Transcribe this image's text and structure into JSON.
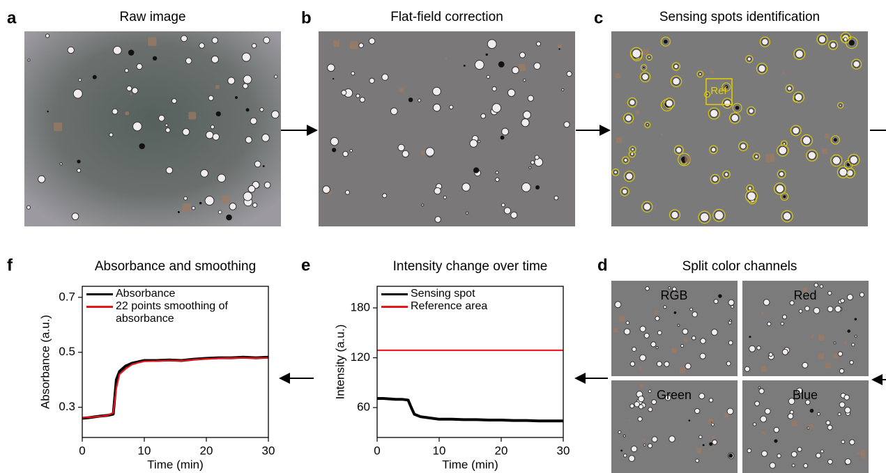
{
  "panels": [
    {
      "letter": "a",
      "title": "Raw image"
    },
    {
      "letter": "b",
      "title": "Flat-field correction"
    },
    {
      "letter": "c",
      "title": "Sensing spots identification",
      "annotation": "Ref"
    },
    {
      "letter": "d",
      "title": "Split color channels",
      "channels": [
        "RGB",
        "Red",
        "Green",
        "Blue"
      ]
    },
    {
      "letter": "e"
    },
    {
      "letter": "f"
    }
  ],
  "chart_data": [
    {
      "type": "line",
      "title": "Absorbance and smoothing",
      "xlabel": "Time (min)",
      "ylabel": "Absorbance (a.u.)",
      "x": [
        0,
        1,
        2,
        3,
        4,
        5,
        5.5,
        6,
        7,
        8,
        9,
        10,
        12,
        14,
        16,
        18,
        20,
        22,
        24,
        26,
        28,
        30
      ],
      "series": [
        {
          "name": "Absorbance",
          "color": "#000000",
          "values": [
            0.26,
            0.262,
            0.265,
            0.268,
            0.27,
            0.275,
            0.4,
            0.43,
            0.45,
            0.46,
            0.465,
            0.47,
            0.47,
            0.472,
            0.47,
            0.475,
            0.478,
            0.48,
            0.48,
            0.482,
            0.48,
            0.482
          ]
        },
        {
          "name": "22 points smoothing of absorbance",
          "color": "#e8141a",
          "values": [
            0.262,
            0.263,
            0.265,
            0.267,
            0.27,
            0.28,
            0.37,
            0.42,
            0.44,
            0.455,
            0.462,
            0.467,
            0.468,
            0.47,
            0.469,
            0.473,
            0.476,
            0.478,
            0.479,
            0.48,
            0.479,
            0.48
          ]
        }
      ],
      "xlim": [
        0,
        30
      ],
      "xticks": [
        0,
        10,
        20,
        30
      ],
      "ylim": [
        0.19,
        0.74
      ],
      "yticks": [
        0.3,
        0.5,
        0.7
      ],
      "legend": "upper left"
    },
    {
      "type": "line",
      "title": "Intensity change over time",
      "xlabel": "Time (min)",
      "ylabel": "Intensity (a.u.)",
      "x": [
        0,
        1,
        2,
        3,
        4,
        5,
        5.5,
        6,
        7,
        8,
        9,
        10,
        12,
        14,
        16,
        18,
        20,
        22,
        24,
        26,
        28,
        30
      ],
      "series": [
        {
          "name": "Sensing spot",
          "color": "#000000",
          "values": [
            71,
            71,
            70.5,
            70,
            70,
            69,
            60,
            52,
            49,
            48,
            47,
            46,
            46,
            45.5,
            45.5,
            45,
            45,
            44.5,
            44.5,
            44,
            44,
            44
          ]
        },
        {
          "name": "Reference area",
          "color": "#e8141a",
          "values": [
            129,
            129,
            129,
            129,
            129,
            129,
            129,
            129,
            129,
            129,
            129,
            129,
            129,
            129,
            129,
            129,
            129,
            129,
            129,
            129,
            129,
            129
          ]
        }
      ],
      "xlim": [
        0,
        30
      ],
      "xticks": [
        0,
        10,
        20,
        30
      ],
      "ylim": [
        24,
        206
      ],
      "yticks": [
        60,
        120,
        180
      ],
      "legend": "upper left"
    }
  ]
}
